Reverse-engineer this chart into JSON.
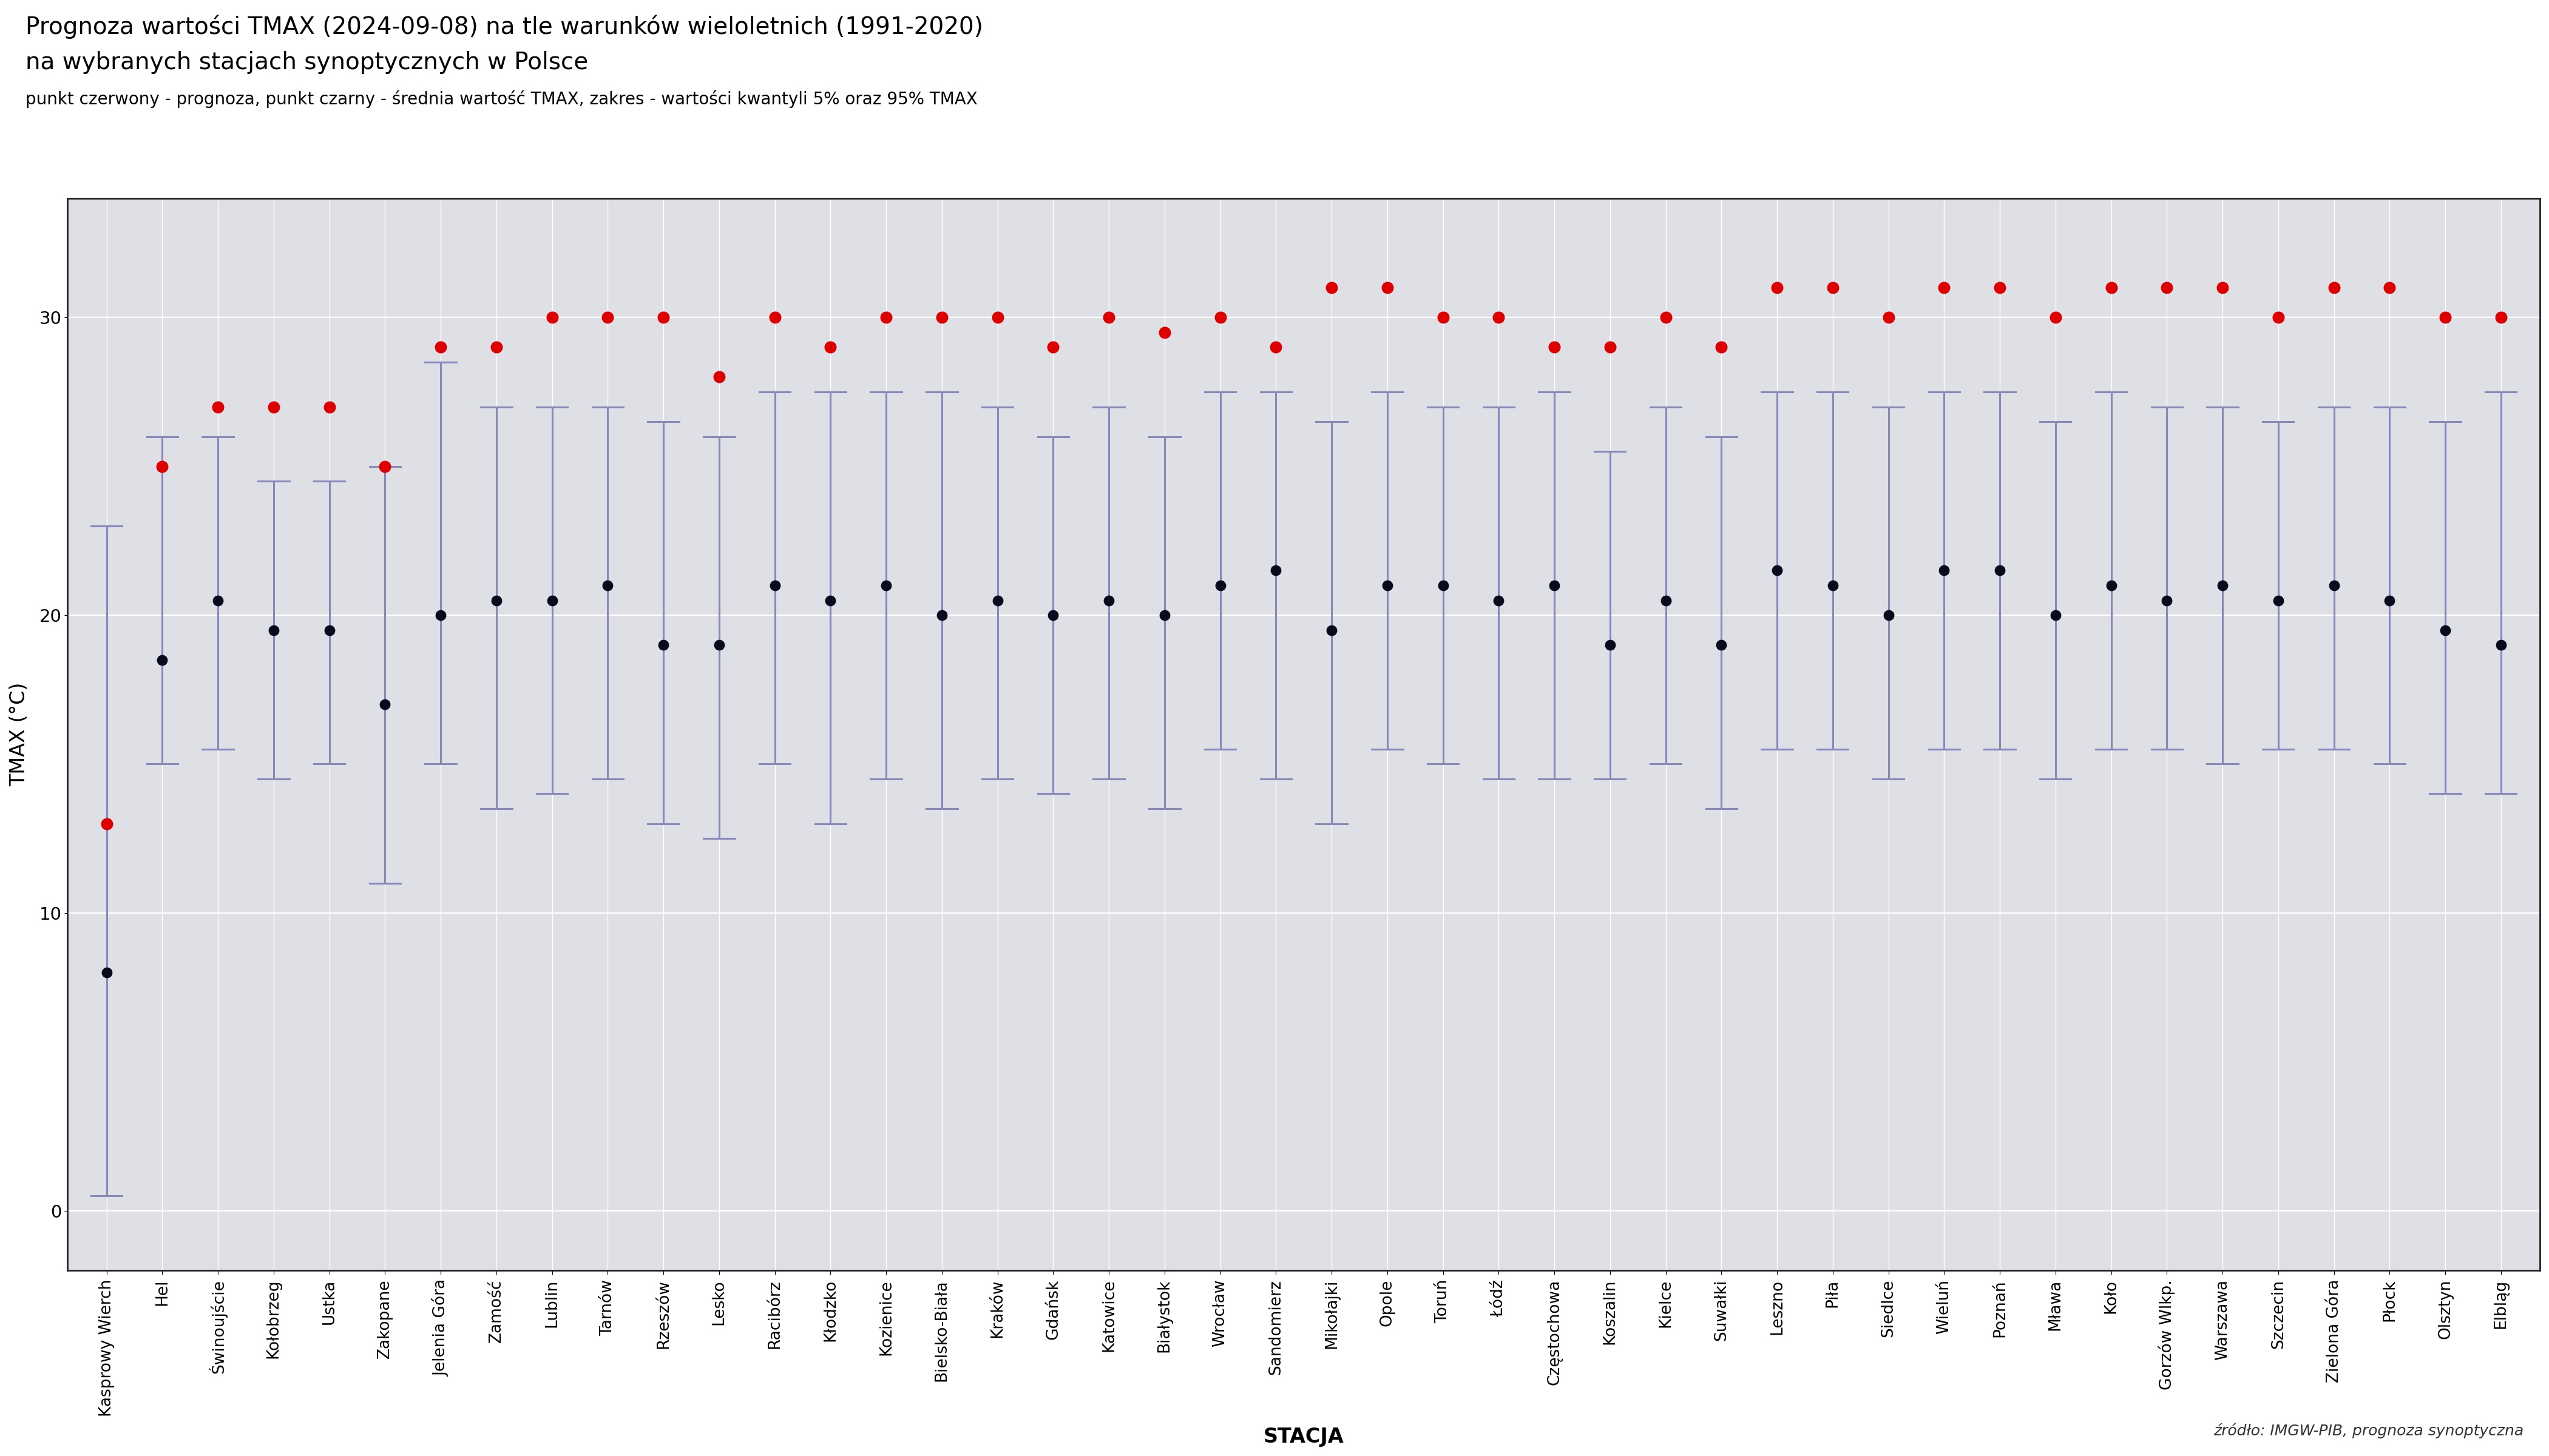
{
  "title_line1": "Prognoza wartości TMAX (2024-09-08) na tle warunków wieloletnich (1991-2020)",
  "title_line2": "na wybranych stacjach synoptycznych w Polsce",
  "subtitle": "punkt czerwony - prognoza, punkt czarny - średnia wartość TMAX, zakres - wartości kwantyli 5% oraz 95% TMAX",
  "xlabel": "STACJA",
  "ylabel": "TMAX (°C)",
  "source": "źródło: IMGW-PIB, prognoza synoptyczna",
  "ylim": [
    -2,
    34
  ],
  "yticks": [
    0,
    10,
    20,
    30
  ],
  "background_color": "#dfe0e6",
  "fig_background": "#ffffff",
  "stations": [
    "Kasprowy Wierch",
    "Hel",
    "Świnoujście",
    "Kołobrzeg",
    "Ustka",
    "Zakopane",
    "Jelenia Góra",
    "Zamość",
    "Lublin",
    "Tarnów",
    "Rzeszów",
    "Lesko",
    "Racibórz",
    "Kłodzko",
    "Kozienice",
    "Bielsko-Biała",
    "Kraków",
    "Gdańsk",
    "Katowice",
    "Białystok",
    "Wrocław",
    "Sandomierz",
    "Mikołajki",
    "Opole",
    "Toruń",
    "Łódź",
    "Częstochowa",
    "Koszalin",
    "Kielce",
    "Suwałki",
    "Leszno",
    "Piła",
    "Siedlce",
    "Wieluń",
    "Poznań",
    "Mława",
    "Koło",
    "Gorzów Wlkp.",
    "Warszawa",
    "Szczecin",
    "Zielona Góra",
    "Płock",
    "Olsztyn",
    "Elbląg"
  ],
  "forecast": [
    13.0,
    25.0,
    27.0,
    27.0,
    27.0,
    25.0,
    29.0,
    29.0,
    30.0,
    30.0,
    30.0,
    28.0,
    30.0,
    29.0,
    30.0,
    30.0,
    30.0,
    29.0,
    30.0,
    29.5,
    30.0,
    29.0,
    31.0,
    31.0,
    30.0,
    30.0,
    29.0,
    29.0,
    30.0,
    29.0,
    31.0,
    31.0,
    30.0,
    31.0,
    31.0,
    30.0,
    31.0,
    31.0,
    31.0,
    30.0,
    31.0,
    31.0,
    30.0,
    30.0
  ],
  "mean": [
    8.0,
    18.5,
    20.5,
    19.5,
    19.5,
    17.0,
    20.0,
    20.5,
    20.5,
    21.0,
    19.0,
    19.0,
    21.0,
    20.5,
    21.0,
    20.0,
    20.5,
    20.0,
    20.5,
    20.0,
    21.0,
    21.5,
    19.5,
    21.0,
    21.0,
    20.5,
    21.0,
    19.0,
    20.5,
    19.0,
    21.5,
    21.0,
    20.0,
    21.5,
    21.5,
    20.0,
    21.0,
    20.5,
    21.0,
    20.5,
    21.0,
    20.5,
    19.5,
    19.0
  ],
  "q05": [
    0.5,
    15.0,
    15.5,
    14.5,
    15.0,
    11.0,
    15.0,
    13.5,
    14.0,
    14.5,
    13.0,
    12.5,
    15.0,
    13.0,
    14.5,
    13.5,
    14.5,
    14.0,
    14.5,
    13.5,
    15.5,
    14.5,
    13.0,
    15.5,
    15.0,
    14.5,
    14.5,
    14.5,
    15.0,
    13.5,
    15.5,
    15.5,
    14.5,
    15.5,
    15.5,
    14.5,
    15.5,
    15.5,
    15.0,
    15.5,
    15.5,
    15.0,
    14.0,
    14.0
  ],
  "q95": [
    23.0,
    26.0,
    26.0,
    24.5,
    24.5,
    25.0,
    28.5,
    27.0,
    27.0,
    27.0,
    26.5,
    26.0,
    27.5,
    27.5,
    27.5,
    27.5,
    27.0,
    26.0,
    27.0,
    26.0,
    27.5,
    27.5,
    26.5,
    27.5,
    27.0,
    27.0,
    27.5,
    25.5,
    27.0,
    26.0,
    27.5,
    27.5,
    27.0,
    27.5,
    27.5,
    26.5,
    27.5,
    27.0,
    27.0,
    26.5,
    27.0,
    27.0,
    26.5,
    27.5
  ],
  "forecast_color": "#dd0000",
  "mean_color": "#0a0a1e",
  "error_color": "#8888bb",
  "grid_color": "#ffffff",
  "title_fontsize": 28,
  "subtitle_fontsize": 20,
  "label_fontsize": 24,
  "tick_fontsize": 19,
  "source_fontsize": 18
}
